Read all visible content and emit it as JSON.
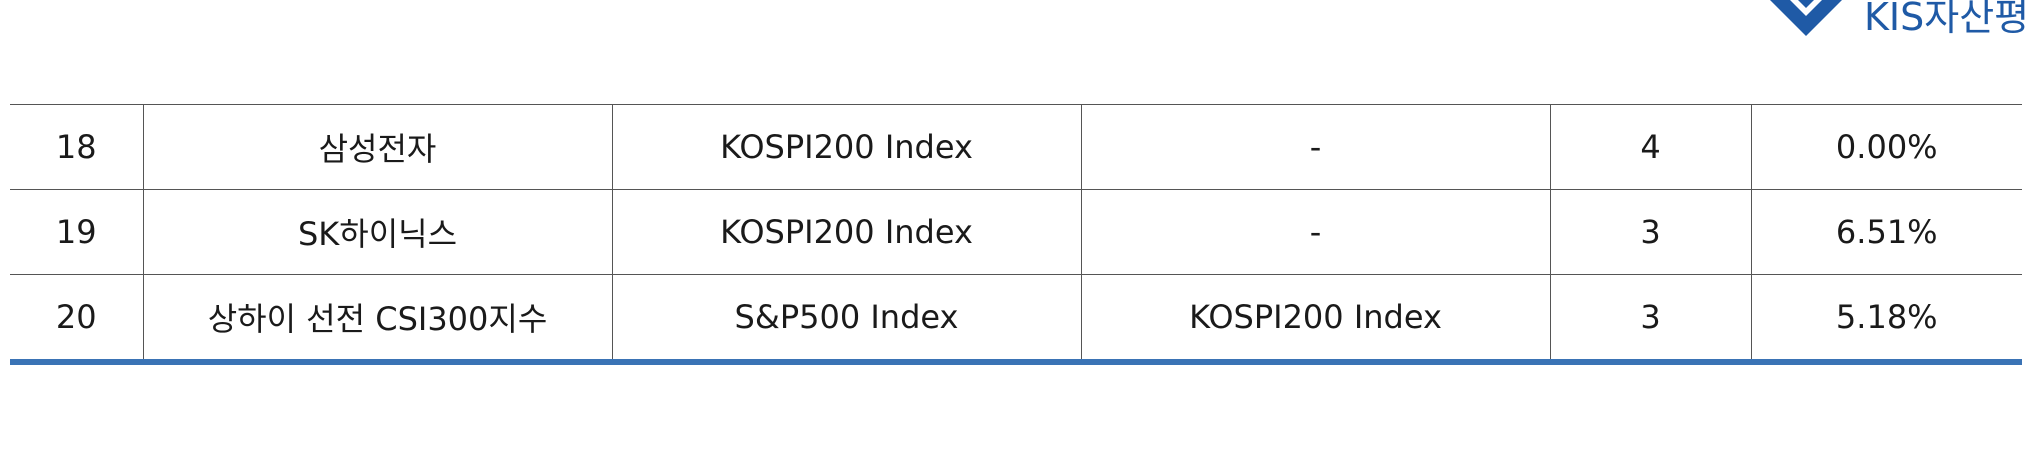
{
  "header": {
    "logo_text": "KIS자산평"
  },
  "table": {
    "rows": [
      [
        "18",
        "삼성전자",
        "KOSPI200 Index",
        "-",
        "4",
        "0.00%"
      ],
      [
        "19",
        "SK하이닉스",
        "KOSPI200 Index",
        "-",
        "3",
        "6.51%"
      ],
      [
        "20",
        "상하이 선전 CSI300지수",
        "S&P500 Index",
        "KOSPI200 Index",
        "3",
        "5.18%"
      ]
    ]
  },
  "colors": {
    "brand": "#1f5aa6",
    "accent_rule": "#3a73b5",
    "grid": "#555555"
  }
}
